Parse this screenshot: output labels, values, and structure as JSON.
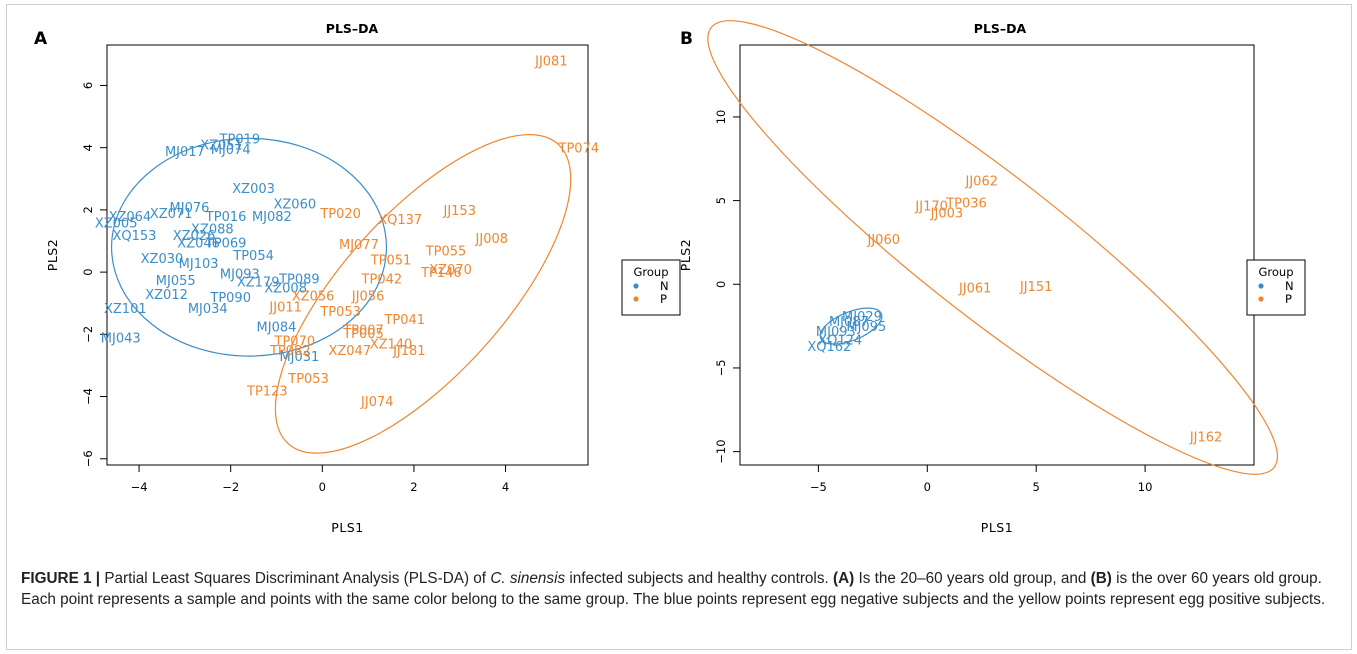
{
  "chart_data": [
    {
      "panel_label": "A",
      "type": "scatter",
      "title": "PLS–DA",
      "xlabel": "PLS1",
      "ylabel": "PLS2",
      "xlim": [
        -4.7,
        5.8
      ],
      "ylim": [
        -6.2,
        7.3
      ],
      "xticks": [
        "−4",
        "−2",
        "0",
        "2",
        "4"
      ],
      "xtick_values": [
        -4,
        -2,
        0,
        2,
        4
      ],
      "yticks": [
        "−6",
        "−4",
        "−2",
        "0",
        "2",
        "4",
        "6"
      ],
      "ytick_values": [
        -6,
        -4,
        -2,
        0,
        2,
        4,
        6
      ],
      "legend": {
        "title": "Group",
        "placement": "right",
        "entries": [
          "N",
          "P"
        ]
      },
      "series": [
        {
          "name": "N",
          "color": "#3b8ec9",
          "points": [
            {
              "label": "TP019",
              "x": -1.8,
              "y": 4.3
            },
            {
              "label": "XZ051",
              "x": -2.2,
              "y": 4.1
            },
            {
              "label": "MJ017",
              "x": -3.0,
              "y": 3.9
            },
            {
              "label": "MJ074",
              "x": -2.0,
              "y": 3.95
            },
            {
              "label": "XZ003",
              "x": -1.5,
              "y": 2.7
            },
            {
              "label": "MJ076",
              "x": -2.9,
              "y": 2.1
            },
            {
              "label": "XZ060",
              "x": -0.6,
              "y": 2.2
            },
            {
              "label": "XZ064",
              "x": -4.2,
              "y": 1.8
            },
            {
              "label": "XZ071",
              "x": -3.3,
              "y": 1.9
            },
            {
              "label": "TP016",
              "x": -2.1,
              "y": 1.8
            },
            {
              "label": "MJ082",
              "x": -1.1,
              "y": 1.8
            },
            {
              "label": "XZ005",
              "x": -4.5,
              "y": 1.6
            },
            {
              "label": "XZ088",
              "x": -2.4,
              "y": 1.4
            },
            {
              "label": "XQ153",
              "x": -4.1,
              "y": 1.2
            },
            {
              "label": "XZ026",
              "x": -2.8,
              "y": 1.2
            },
            {
              "label": "XZ046",
              "x": -2.7,
              "y": 0.95
            },
            {
              "label": "TP069",
              "x": -2.1,
              "y": 0.95
            },
            {
              "label": "TP054",
              "x": -1.5,
              "y": 0.55
            },
            {
              "label": "XZ030",
              "x": -3.5,
              "y": 0.45
            },
            {
              "label": "MJ103",
              "x": -2.7,
              "y": 0.3
            },
            {
              "label": "MJ093",
              "x": -1.8,
              "y": -0.05
            },
            {
              "label": "MJ055",
              "x": -3.2,
              "y": -0.25
            },
            {
              "label": "XZ179",
              "x": -1.4,
              "y": -0.3
            },
            {
              "label": "TP089",
              "x": -0.5,
              "y": -0.2
            },
            {
              "label": "XZ012",
              "x": -3.4,
              "y": -0.7
            },
            {
              "label": "XZ008",
              "x": -0.8,
              "y": -0.5
            },
            {
              "label": "TP090",
              "x": -2.0,
              "y": -0.8
            },
            {
              "label": "XZ101",
              "x": -4.3,
              "y": -1.15
            },
            {
              "label": "MJ034",
              "x": -2.5,
              "y": -1.15
            },
            {
              "label": "MJ084",
              "x": -1.0,
              "y": -1.75
            },
            {
              "label": "MJ043",
              "x": -4.4,
              "y": -2.1
            },
            {
              "label": "MJ031",
              "x": -0.5,
              "y": -2.7
            }
          ]
        },
        {
          "name": "P",
          "color": "#ef8630",
          "points": [
            {
              "label": "JJ081",
              "x": 5.0,
              "y": 6.8
            },
            {
              "label": "TP074",
              "x": 5.6,
              "y": 4.0
            },
            {
              "label": "TP020",
              "x": 0.4,
              "y": 1.9
            },
            {
              "label": "XQ137",
              "x": 1.7,
              "y": 1.7
            },
            {
              "label": "JJ153",
              "x": 3.0,
              "y": 2.0
            },
            {
              "label": "MJ077",
              "x": 0.8,
              "y": 0.9
            },
            {
              "label": "JJ008",
              "x": 3.7,
              "y": 1.1
            },
            {
              "label": "TP055",
              "x": 2.7,
              "y": 0.7
            },
            {
              "label": "TP051",
              "x": 1.5,
              "y": 0.4
            },
            {
              "label": "XZ070",
              "x": 2.8,
              "y": 0.1
            },
            {
              "label": "TP146",
              "x": 2.6,
              "y": 0
            },
            {
              "label": "TP042",
              "x": 1.3,
              "y": -0.2
            },
            {
              "label": "JJ056",
              "x": 1.0,
              "y": -0.75
            },
            {
              "label": "XZ056",
              "x": -0.2,
              "y": -0.75
            },
            {
              "label": "JJ011",
              "x": -0.8,
              "y": -1.1
            },
            {
              "label": "TP053",
              "x": 0.4,
              "y": -1.25
            },
            {
              "label": "TP041",
              "x": 1.8,
              "y": -1.5
            },
            {
              "label": "TP007",
              "x": 0.9,
              "y": -1.85
            },
            {
              "label": "TP005",
              "x": 0.9,
              "y": -1.95
            },
            {
              "label": "TP070",
              "x": -0.6,
              "y": -2.2
            },
            {
              "label": "TP082",
              "x": -0.7,
              "y": -2.5
            },
            {
              "label": "XZ047",
              "x": 0.6,
              "y": -2.5
            },
            {
              "label": "XZ140",
              "x": 1.5,
              "y": -2.3
            },
            {
              "label": "JJ181",
              "x": 1.9,
              "y": -2.5
            },
            {
              "label": "TP053",
              "x": -0.3,
              "y": -3.4
            },
            {
              "label": "TP123",
              "x": -1.2,
              "y": -3.8
            },
            {
              "label": "JJ074",
              "x": 1.2,
              "y": -4.15
            }
          ]
        }
      ]
    },
    {
      "panel_label": "B",
      "type": "scatter",
      "title": "PLS–DA",
      "xlabel": "PLS1",
      "ylabel": "PLS2",
      "xlim": [
        -8.6,
        15.0
      ],
      "ylim": [
        -10.8,
        14.3
      ],
      "xticks": [
        "−5",
        "0",
        "5",
        "10"
      ],
      "xtick_values": [
        -5,
        0,
        5,
        10
      ],
      "yticks": [
        "−10",
        "−5",
        "0",
        "5",
        "10"
      ],
      "ytick_values": [
        -10,
        -5,
        0,
        5,
        10
      ],
      "legend": {
        "title": "Group",
        "placement": "right",
        "entries": [
          "N",
          "P"
        ]
      },
      "series": [
        {
          "name": "N",
          "color": "#3b8ec9",
          "points": [
            {
              "label": "MJ029",
              "x": -3.0,
              "y": -1.9
            },
            {
              "label": "MJ087",
              "x": -3.6,
              "y": -2.2
            },
            {
              "label": "MJ095",
              "x": -2.8,
              "y": -2.5
            },
            {
              "label": "MJ093",
              "x": -4.2,
              "y": -2.8
            },
            {
              "label": "XQ124",
              "x": -4.0,
              "y": -3.3
            },
            {
              "label": "XQ162",
              "x": -4.5,
              "y": -3.7
            }
          ]
        },
        {
          "name": "P",
          "color": "#ef8630",
          "points": [
            {
              "label": "JJ062",
              "x": 2.5,
              "y": 6.2
            },
            {
              "label": "JJ170",
              "x": 0.2,
              "y": 4.7
            },
            {
              "label": "TP036",
              "x": 1.8,
              "y": 4.9
            },
            {
              "label": "JJ003",
              "x": 0.9,
              "y": 4.3
            },
            {
              "label": "JJ060",
              "x": -2.0,
              "y": 2.7
            },
            {
              "label": "JJ061",
              "x": 2.2,
              "y": -0.2
            },
            {
              "label": "JJ151",
              "x": 5.0,
              "y": -0.1
            },
            {
              "label": "JJ162",
              "x": 12.8,
              "y": -9.1
            }
          ]
        }
      ]
    }
  ],
  "caption": {
    "label": "FIGURE 1 |",
    "before_italic": " Partial Least Squares Discriminant Analysis (PLS-DA) of ",
    "italic": "C. sinensis",
    "after_italic": " infected subjects and healthy controls. ",
    "panel_a": "(A)",
    "mid": " Is the 20–60 years old group, and ",
    "panel_b": "(B)",
    "rest": " is the over 60 years old group. Each point represents a sample and points with the same color belong to the same group. The blue points represent egg negative subjects and the yellow points represent egg positive subjects."
  }
}
